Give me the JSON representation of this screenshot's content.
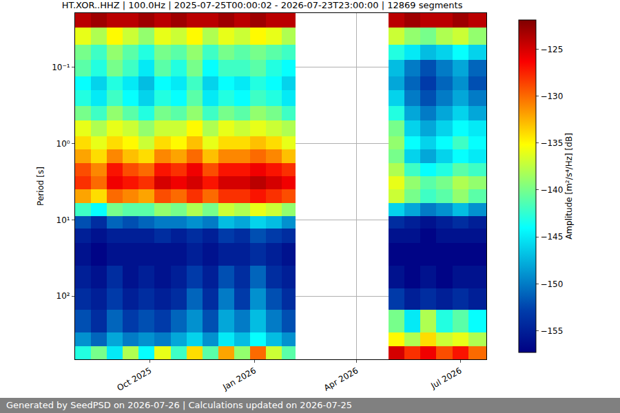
{
  "chart_data": {
    "type": "heatmap",
    "title": "HT.XOR..HHZ | 100.0Hz | 2025-07-25T00:00:02 - 2026-07-23T23:00:00 | 12869 segments",
    "y_label": "Period [s]",
    "colorbar_label": "Amplitude [m²/s⁴/Hz] [dB]",
    "footer": "Generated by SeedPSD on 2026-07-26 | Calculations updated on 2026-07-25",
    "log": "y",
    "grid": true,
    "color": "Jet",
    "xlim": [
      "2025-07-27",
      "2026-07-24"
    ],
    "xticks": [
      {
        "value": "2025-10-01",
        "label": "Oct 2025"
      },
      {
        "value": "2026-01-01",
        "label": "Jan 2026"
      },
      {
        "value": "2026-04-01",
        "label": "Apr 2026"
      },
      {
        "value": "2026-07-01",
        "label": "Jul 2026"
      }
    ],
    "ylim": [
      674,
      0.0194
    ],
    "yticks": [
      {
        "value": 0.1,
        "label": "10⁻¹"
      },
      {
        "value": 1,
        "label": "10⁰"
      },
      {
        "value": 10,
        "label": "10¹"
      },
      {
        "value": 100,
        "label": "10²"
      }
    ],
    "x_bins": [
      "2025-07-27",
      "2025-08-10",
      "2025-08-24",
      "2025-09-07",
      "2025-09-21",
      "2025-10-05",
      "2025-10-19",
      "2025-11-02",
      "2025-11-16",
      "2025-11-30",
      "2025-12-14",
      "2025-12-28",
      "2026-01-11",
      "2026-01-25",
      "2026-02-06",
      "2026-04-29",
      "2026-05-13",
      "2026-05-27",
      "2026-06-10",
      "2026-06-24",
      "2026-07-08",
      "2026-07-24"
    ],
    "y_bins": [
      0.0194,
      0.03,
      0.05,
      0.08,
      0.13,
      0.2,
      0.32,
      0.5,
      0.8,
      1.2,
      1.8,
      2.7,
      4,
      6,
      9,
      13,
      20,
      40,
      80,
      150,
      300,
      450,
      674
    ],
    "zlim": [
      -157.3,
      -121.9
    ],
    "zticks": [
      -155,
      -150,
      -145,
      -140,
      -135,
      -130,
      -125
    ],
    "cells": [
      [
        -124,
        -123,
        -124,
        -124,
        -123,
        -124,
        -123,
        -124,
        -124,
        -123,
        -124,
        -123,
        -124,
        -124,
        null,
        -124,
        -123,
        -124,
        -124,
        -123,
        -124
      ],
      [
        -136,
        -138,
        -135,
        -137,
        -139,
        -136,
        -137,
        -135,
        -138,
        -136,
        -137,
        -135,
        -136,
        -138,
        null,
        -137,
        -139,
        -140,
        -138,
        -137,
        -139
      ],
      [
        -140,
        -142,
        -139,
        -141,
        -143,
        -140,
        -141,
        -139,
        -142,
        -140,
        -141,
        -140,
        -141,
        -142,
        null,
        -143,
        -145,
        -147,
        -146,
        -144,
        -146
      ],
      [
        -141,
        -143,
        -140,
        -142,
        -145,
        -141,
        -143,
        -140,
        -144,
        -142,
        -142,
        -141,
        -143,
        -144,
        null,
        -147,
        -150,
        -152,
        -150,
        -148,
        -151
      ],
      [
        -144,
        -146,
        -143,
        -145,
        -147,
        -144,
        -145,
        -142,
        -146,
        -144,
        -145,
        -143,
        -144,
        -146,
        null,
        -148,
        -151,
        -153,
        -151,
        -149,
        -152
      ],
      [
        -143,
        -145,
        -142,
        -144,
        -146,
        -143,
        -144,
        -141,
        -145,
        -143,
        -144,
        -142,
        -143,
        -145,
        null,
        -146,
        -150,
        -152,
        -150,
        -148,
        -150
      ],
      [
        -140,
        -142,
        -139,
        -141,
        -143,
        -140,
        -141,
        -139,
        -142,
        -140,
        -141,
        -139,
        -140,
        -142,
        null,
        -143,
        -148,
        -150,
        -148,
        -146,
        -148
      ],
      [
        -136,
        -138,
        -136,
        -137,
        -139,
        -137,
        -137,
        -135,
        -138,
        -136,
        -137,
        -136,
        -137,
        -138,
        null,
        -140,
        -146,
        -148,
        -146,
        -144,
        -145
      ],
      [
        -134,
        -136,
        -134,
        -135,
        -137,
        -134,
        -135,
        -133,
        -136,
        -134,
        -134,
        -133,
        -134,
        -136,
        null,
        -139,
        -144,
        -146,
        -144,
        -142,
        -144
      ],
      [
        -132,
        -134,
        -131,
        -133,
        -134,
        -131,
        -132,
        -130,
        -133,
        -131,
        -131,
        -130,
        -131,
        -133,
        null,
        -140,
        -146,
        -148,
        -146,
        -144,
        -145
      ],
      [
        -129,
        -131,
        -127,
        -129,
        -130,
        -127,
        -128,
        -126,
        -129,
        -127,
        -127,
        -126,
        -127,
        -128,
        null,
        -138,
        -142,
        -144,
        -143,
        -141,
        -142
      ],
      [
        -128,
        -130,
        -126,
        -127,
        -128,
        -125,
        -126,
        -125,
        -127,
        -125,
        -125,
        -124,
        -125,
        -126,
        null,
        -136,
        -139,
        -141,
        -140,
        -138,
        -139
      ],
      [
        -132,
        -134,
        -130,
        -131,
        -132,
        -129,
        -130,
        -128,
        -130,
        -128,
        -128,
        -127,
        -128,
        -129,
        null,
        -137,
        -140,
        -142,
        -141,
        -139,
        -141
      ],
      [
        -142,
        -144,
        -140,
        -141,
        -141,
        -139,
        -140,
        -138,
        -140,
        -137,
        -138,
        -136,
        -137,
        -139,
        null,
        -146,
        -148,
        -150,
        -149,
        -147,
        -149
      ],
      [
        -152,
        -154,
        -151,
        -152,
        -151,
        -150,
        -150,
        -149,
        -150,
        -147,
        -148,
        -146,
        -147,
        -149,
        null,
        -154,
        -155,
        -156,
        -155,
        -154,
        -155
      ],
      [
        -155,
        -156,
        -155,
        -155,
        -155,
        -154,
        -155,
        -154,
        -155,
        -153,
        -154,
        -152,
        -153,
        -154,
        null,
        -156,
        -156,
        -157,
        -156,
        -156,
        -156
      ],
      [
        -156,
        -157,
        -156,
        -156,
        -156,
        -156,
        -156,
        -155,
        -156,
        -155,
        -155,
        -154,
        -155,
        -156,
        null,
        -157,
        -157,
        -157,
        -157,
        -157,
        -157
      ],
      [
        -155,
        -156,
        -154,
        -156,
        -155,
        -156,
        -155,
        -153,
        -155,
        -152,
        -154,
        -151,
        -154,
        -155,
        null,
        -156,
        -157,
        -156,
        -157,
        -156,
        -156
      ],
      [
        -154,
        -155,
        -153,
        -155,
        -154,
        -155,
        -154,
        -151,
        -154,
        -150,
        -153,
        -149,
        -152,
        -154,
        null,
        -153,
        -155,
        -154,
        -155,
        -154,
        -155
      ],
      [
        -152,
        -154,
        -151,
        -153,
        -152,
        -153,
        -151,
        -149,
        -152,
        -148,
        -150,
        -147,
        -150,
        -152,
        null,
        -140,
        -145,
        -138,
        -143,
        -141,
        -144
      ],
      [
        -149,
        -151,
        -148,
        -150,
        -149,
        -150,
        -148,
        -146,
        -149,
        -145,
        -147,
        -144,
        -147,
        -149,
        null,
        -135,
        -138,
        -134,
        -137,
        -136,
        -138
      ],
      [
        -143,
        -140,
        -145,
        -138,
        -144,
        -136,
        -142,
        -134,
        -141,
        -132,
        -139,
        -130,
        -137,
        -141,
        null,
        -125,
        -128,
        -126,
        -129,
        -127,
        -130
      ]
    ]
  }
}
